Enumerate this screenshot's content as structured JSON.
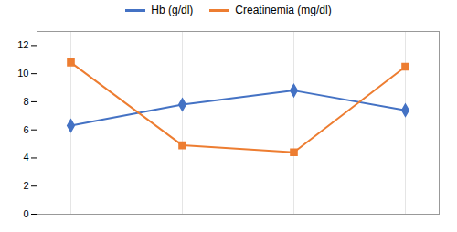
{
  "chart_data": {
    "type": "line",
    "categories": [
      null,
      null,
      null,
      null
    ],
    "series": [
      {
        "name": "Hb (g/dl)",
        "color": "#4472C4",
        "marker": "diamond",
        "values": [
          6.3,
          7.8,
          8.8,
          7.4
        ]
      },
      {
        "name": "Creatinemia (mg/dl)",
        "color": "#ED7D31",
        "marker": "square",
        "values": [
          10.8,
          4.9,
          4.4,
          10.5
        ]
      }
    ],
    "ylim": [
      0,
      13
    ],
    "yticks": [
      0,
      2,
      4,
      6,
      8,
      10,
      12
    ],
    "grid": true,
    "legend": "top",
    "tick_labels": "y"
  }
}
